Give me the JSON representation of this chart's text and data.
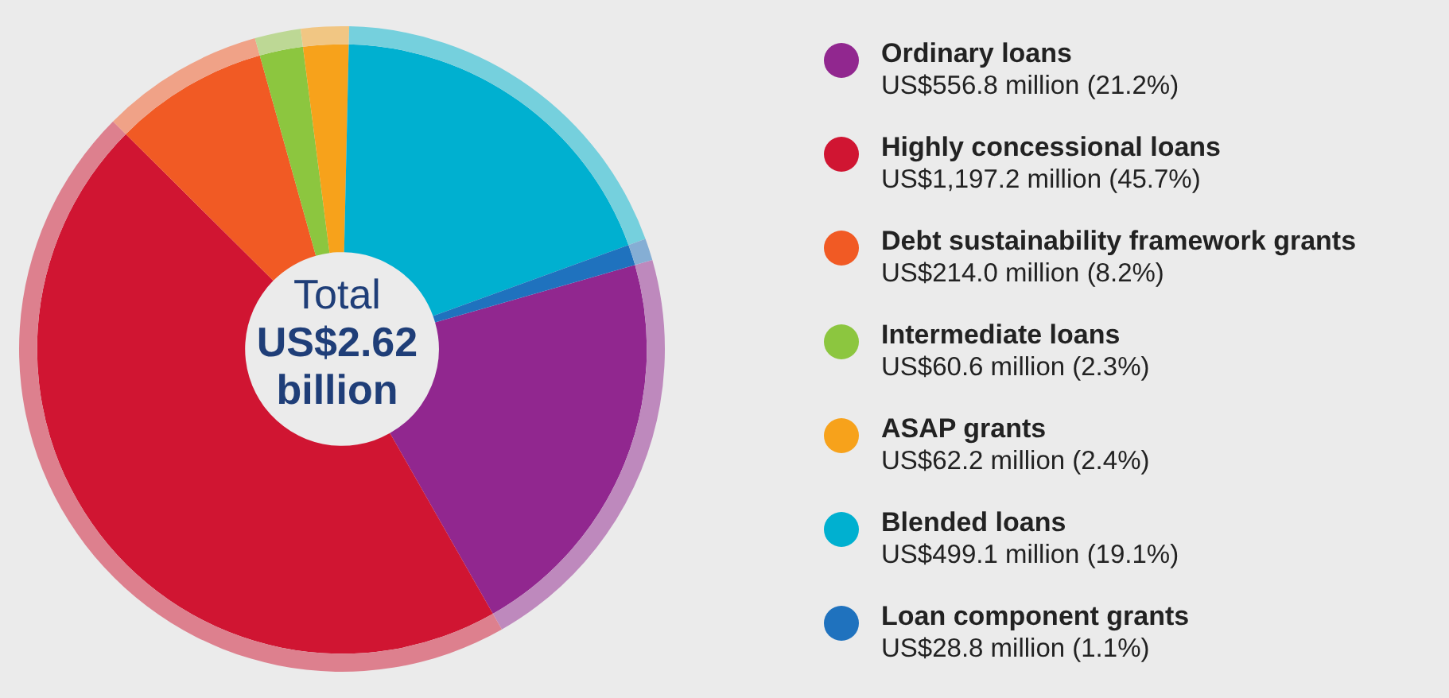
{
  "chart_data": {
    "type": "donut",
    "categories": [
      "Ordinary loans",
      "Highly concessional loans",
      "Debt sustainability framework grants",
      "Intermediate loans",
      "ASAP grants",
      "Blended loans",
      "Loan component grants"
    ],
    "series": [
      {
        "values": [
          21.2,
          45.7,
          8.2,
          2.3,
          2.4,
          19.1,
          1.1
        ],
        "colors": [
          "#91278f",
          "#d01532",
          "#f15a24",
          "#8cc63f",
          "#f7a21b",
          "#00b0d0",
          "#1f72be"
        ]
      },
      {
        "values": [
          21.2,
          45.7,
          8.2,
          2.3,
          2.4,
          19.1,
          1.1
        ],
        "colors": [
          "#be89bd",
          "#dd808e",
          "#f0a287",
          "#bdd895",
          "#f1c683",
          "#75d0dd",
          "#85aed4"
        ]
      }
    ],
    "value_labels": [
      "US$556.8 million (21.2%)",
      "US$1,197.2 million (45.7%)",
      "US$214.0 million (8.2%)",
      "US$60.6 million (2.3%)",
      "US$62.2 million (2.4%)",
      "US$499.1 million (19.1%)",
      "US$28.8 million (1.1%)"
    ],
    "annotations": [
      "Total",
      "US$2.62 billion"
    ],
    "legend": "right"
  }
}
